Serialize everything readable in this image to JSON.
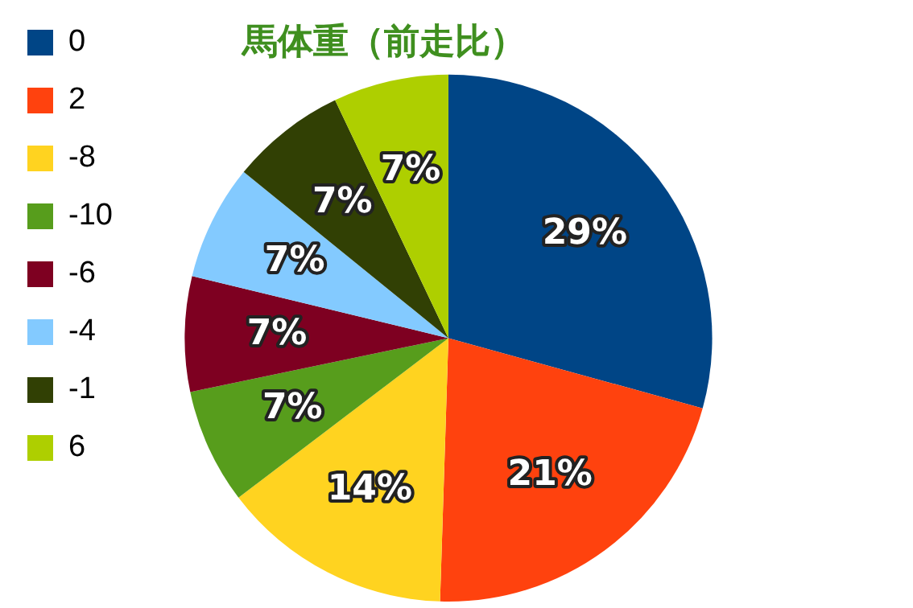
{
  "chart_data": {
    "type": "pie",
    "title": "馬体重（前走比）",
    "categories": [
      "0",
      "2",
      "-8",
      "-10",
      "-6",
      "-4",
      "-1",
      "6"
    ],
    "values": [
      29,
      21,
      14,
      7,
      7,
      7,
      7,
      7
    ],
    "colors": [
      "#004586",
      "#ff420e",
      "#ffd320",
      "#579d1c",
      "#7e0021",
      "#83caff",
      "#314004",
      "#aecf00"
    ],
    "value_labels": [
      "29%",
      "21%",
      "14%",
      "7%",
      "7%",
      "7%",
      "7%",
      "7%"
    ],
    "legend": "left"
  }
}
